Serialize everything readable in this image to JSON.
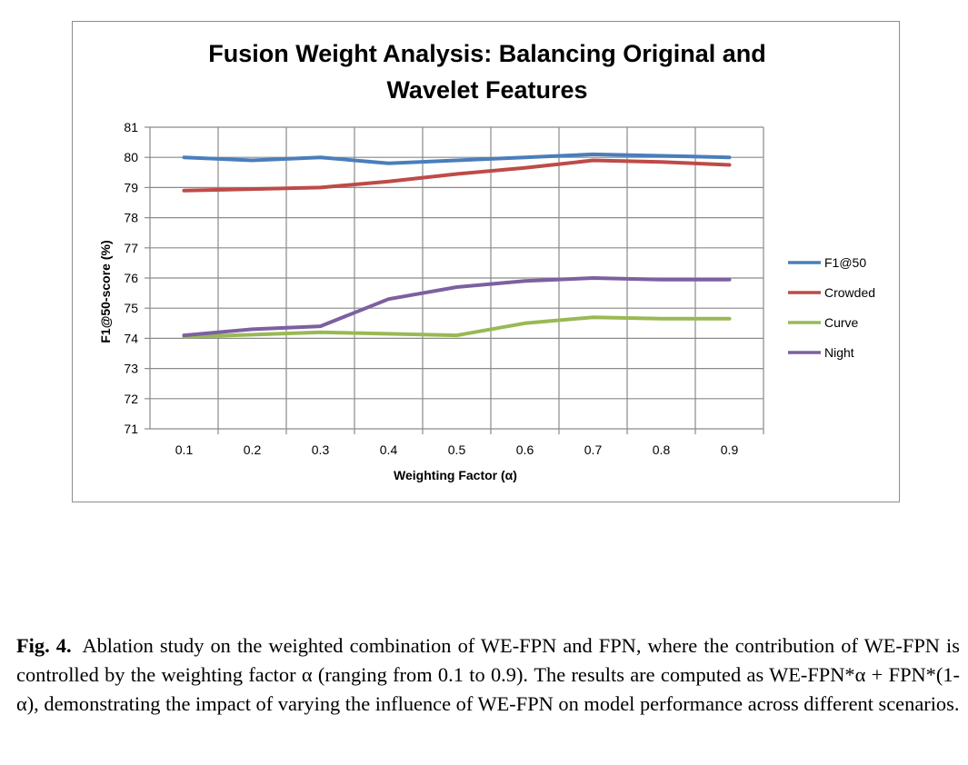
{
  "chart_data": {
    "type": "line",
    "title_lines": [
      "Fusion Weight Analysis: Balancing Original and",
      "Wavelet Features"
    ],
    "xlabel": "Weighting Factor (α)",
    "ylabel": "F1@50-score (%)",
    "categories": [
      "0.1",
      "0.2",
      "0.3",
      "0.4",
      "0.5",
      "0.6",
      "0.7",
      "0.8",
      "0.9"
    ],
    "ylim": [
      71,
      81
    ],
    "yticks": [
      "71",
      "72",
      "73",
      "74",
      "75",
      "76",
      "77",
      "78",
      "79",
      "80",
      "81"
    ],
    "grid": true,
    "legend_position": "right",
    "series": [
      {
        "name": "F1@50",
        "color": "#4a7ebb",
        "values": [
          80.0,
          79.9,
          80.0,
          79.8,
          79.9,
          80.0,
          80.1,
          80.05,
          80.0
        ]
      },
      {
        "name": "Crowded",
        "color": "#be4b48",
        "values": [
          78.9,
          78.95,
          79.0,
          79.2,
          79.45,
          79.65,
          79.9,
          79.85,
          79.75
        ]
      },
      {
        "name": "Curve",
        "color": "#98b954",
        "values": [
          74.05,
          74.12,
          74.2,
          74.15,
          74.1,
          74.5,
          74.7,
          74.65,
          74.65
        ]
      },
      {
        "name": "Night",
        "color": "#7d60a0",
        "values": [
          74.1,
          74.3,
          74.4,
          75.3,
          75.7,
          75.9,
          76.0,
          75.95,
          75.95
        ]
      }
    ]
  },
  "caption": {
    "label": "Fig. 4.",
    "text": "Ablation study on the weighted combination of WE-FPN and FPN, where the contribution of WE-FPN is controlled by the weighting factor α (ranging from 0.1 to 0.9). The results are computed as WE-FPN*α + FPN*(1-α), demonstrating the impact of varying the influence of WE-FPN on model performance across different scenarios."
  }
}
